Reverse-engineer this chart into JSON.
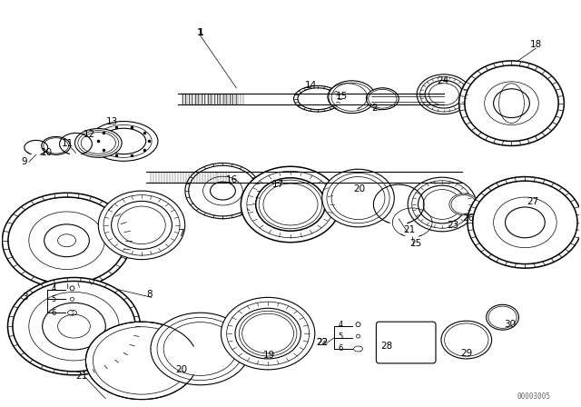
{
  "background_color": "#ffffff",
  "line_color": "#000000",
  "watermark": "00003005",
  "figsize": [
    6.4,
    4.48
  ],
  "dpi": 100
}
